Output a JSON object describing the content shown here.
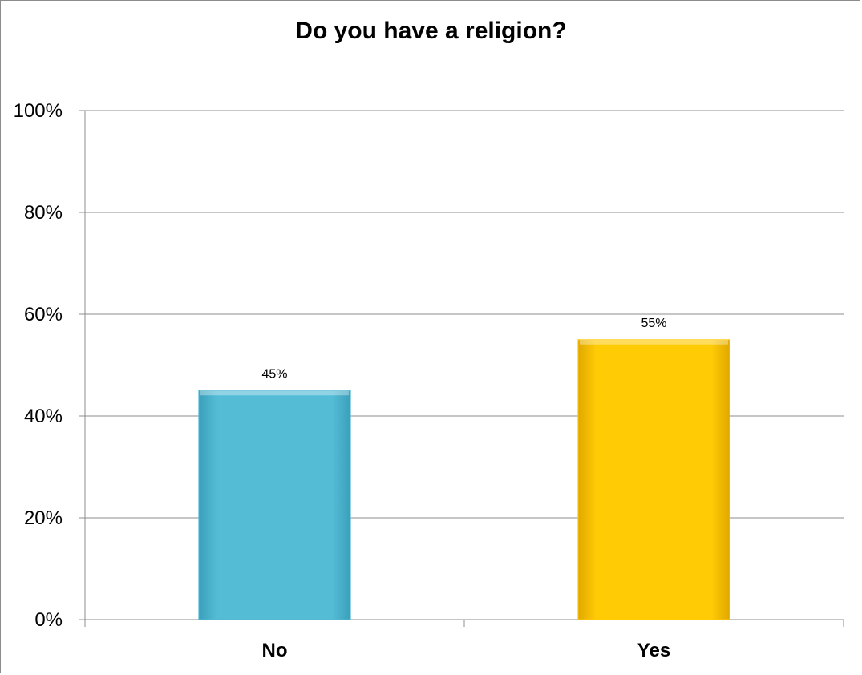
{
  "chart_data": {
    "type": "bar",
    "title": "Do you have a religion?",
    "categories": [
      "No",
      "Yes"
    ],
    "values": [
      45,
      55
    ],
    "data_labels": [
      "45%",
      "55%"
    ],
    "colors": [
      "#4fb8d3",
      "#ffc800"
    ],
    "ylim": [
      0,
      100
    ],
    "yticks": [
      0,
      20,
      40,
      60,
      80,
      100
    ],
    "ytick_labels": [
      "0%",
      "20%",
      "40%",
      "60%",
      "80%",
      "100%"
    ],
    "xlabel": "",
    "ylabel": "",
    "grid": true,
    "legend": "none"
  }
}
